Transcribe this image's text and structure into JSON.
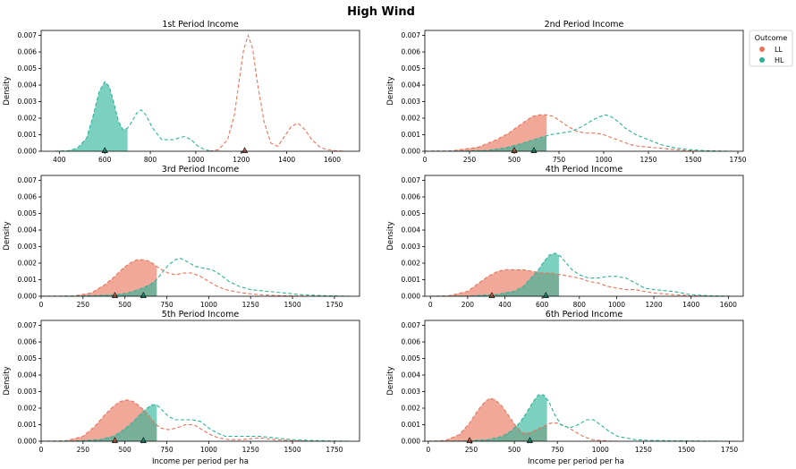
{
  "figure": {
    "title": "High Wind",
    "xlabel": "Income per period per ha",
    "ylabel": "Density",
    "legend": {
      "title": "Outcome",
      "placement": "right-top",
      "entries": [
        {
          "label": "LL",
          "color": "#e8735a"
        },
        {
          "label": "HL",
          "color": "#2bb39a"
        }
      ]
    }
  },
  "chart_data": [
    {
      "type": "area",
      "title": "1st Period Income",
      "xlim": [
        320,
        1720
      ],
      "xticks": [
        400,
        600,
        800,
        1000,
        1200,
        1400,
        1600
      ],
      "ylim": [
        0,
        0.0073
      ],
      "yticks": [
        0.0,
        0.001,
        0.002,
        0.003,
        0.004,
        0.005,
        0.006,
        0.007
      ],
      "grid": false,
      "series": [
        {
          "name": "LL",
          "color": "#e8735a",
          "x": [
            1060,
            1100,
            1140,
            1170,
            1190,
            1210,
            1230,
            1250,
            1270,
            1300,
            1330,
            1360,
            1390,
            1420,
            1450,
            1480,
            1510,
            1550,
            1600,
            1650
          ],
          "y": [
            0.0,
            0.0001,
            0.0007,
            0.0022,
            0.0042,
            0.0061,
            0.007,
            0.0062,
            0.0042,
            0.0018,
            0.0005,
            0.0003,
            0.0009,
            0.0015,
            0.0017,
            0.0013,
            0.0007,
            0.0002,
            5e-05,
            0.0
          ],
          "shade_to": null,
          "marker": 1215
        },
        {
          "name": "HL",
          "color": "#2bb39a",
          "x": [
            380,
            440,
            480,
            520,
            550,
            575,
            600,
            620,
            640,
            660,
            680,
            700,
            720,
            740,
            760,
            780,
            810,
            850,
            900,
            950,
            980,
            1010,
            1040,
            1070,
            1110
          ],
          "y": [
            0.0,
            3e-05,
            0.0002,
            0.0008,
            0.0022,
            0.0036,
            0.0042,
            0.0039,
            0.0029,
            0.0018,
            0.0013,
            0.0014,
            0.0018,
            0.0023,
            0.0025,
            0.0022,
            0.0014,
            0.0007,
            0.0007,
            0.0009,
            0.0007,
            0.0003,
            0.0001,
            0.0,
            0.0
          ],
          "shade_to": 700,
          "marker": 600
        }
      ]
    },
    {
      "type": "area",
      "title": "2nd Period Income",
      "xlim": [
        0,
        1780
      ],
      "xticks": [
        0,
        250,
        500,
        750,
        1000,
        1250,
        1500,
        1750
      ],
      "ylim": [
        0,
        0.0073
      ],
      "yticks": [
        0.0,
        0.001,
        0.002,
        0.003,
        0.004,
        0.005,
        0.006,
        0.007
      ],
      "grid": false,
      "series": [
        {
          "name": "LL",
          "color": "#e8735a",
          "x": [
            0,
            150,
            300,
            400,
            470,
            520,
            560,
            600,
            640,
            680,
            720,
            760,
            800,
            850,
            900,
            950,
            1000,
            1050,
            1100,
            1150,
            1200,
            1300,
            1400,
            1480,
            1520
          ],
          "y": [
            0.0,
            2e-05,
            0.00025,
            0.0007,
            0.0011,
            0.0015,
            0.0018,
            0.0021,
            0.0022,
            0.0022,
            0.0021,
            0.0018,
            0.0015,
            0.0012,
            0.0011,
            0.0011,
            0.001,
            0.0008,
            0.0006,
            0.0004,
            0.0003,
            0.0002,
            0.0001,
            3e-05,
            0.0
          ],
          "shade_to": 680,
          "marker": 500
        },
        {
          "name": "HL",
          "color": "#2bb39a",
          "x": [
            0,
            200,
            350,
            450,
            520,
            580,
            640,
            700,
            760,
            820,
            880,
            940,
            980,
            1010,
            1040,
            1080,
            1120,
            1180,
            1250,
            1320,
            1400,
            1480,
            1550,
            1620,
            1700,
            1740
          ],
          "y": [
            0.0,
            1e-05,
            5e-05,
            0.0002,
            0.0004,
            0.0006,
            0.0008,
            0.001,
            0.0011,
            0.0012,
            0.0015,
            0.0019,
            0.0021,
            0.0022,
            0.0021,
            0.0018,
            0.0014,
            0.001,
            0.0007,
            0.0004,
            0.0002,
            0.0001,
            5e-05,
            2e-05,
            0.0,
            0.0
          ],
          "shade_to": 680,
          "marker": 610
        }
      ]
    },
    {
      "type": "area",
      "title": "3rd Period Income",
      "xlim": [
        0,
        1900
      ],
      "xticks": [
        0,
        250,
        500,
        750,
        1000,
        1250,
        1500,
        1750
      ],
      "ylim": [
        0,
        0.0073
      ],
      "yticks": [
        0.0,
        0.001,
        0.002,
        0.003,
        0.004,
        0.005,
        0.006,
        0.007
      ],
      "grid": false,
      "series": [
        {
          "name": "LL",
          "color": "#e8735a",
          "x": [
            0,
            200,
            300,
            380,
            440,
            490,
            530,
            570,
            610,
            650,
            690,
            720,
            760,
            800,
            850,
            900,
            950,
            1000,
            1050,
            1100,
            1150,
            1200,
            1300,
            1400,
            1500,
            1600,
            1700
          ],
          "y": [
            0.0,
            2e-05,
            0.0002,
            0.0007,
            0.0012,
            0.0017,
            0.002,
            0.0022,
            0.0022,
            0.0021,
            0.0018,
            0.0016,
            0.0014,
            0.0013,
            0.0014,
            0.0014,
            0.0012,
            0.0009,
            0.0006,
            0.0004,
            0.0003,
            0.0002,
            0.0001,
            5e-05,
            2e-05,
            0.0,
            0.0
          ],
          "shade_to": 690,
          "marker": 440
        },
        {
          "name": "HL",
          "color": "#2bb39a",
          "x": [
            0,
            200,
            350,
            450,
            520,
            580,
            630,
            680,
            720,
            760,
            800,
            830,
            870,
            920,
            970,
            1020,
            1070,
            1120,
            1180,
            1250,
            1350,
            1450,
            1550,
            1650,
            1750,
            1850
          ],
          "y": [
            0.0,
            1e-05,
            5e-05,
            0.0001,
            0.0002,
            0.0004,
            0.0006,
            0.0009,
            0.0014,
            0.0019,
            0.0022,
            0.0023,
            0.0021,
            0.0018,
            0.0017,
            0.0016,
            0.0013,
            0.0009,
            0.0006,
            0.0004,
            0.0003,
            0.0002,
            0.0001,
            5e-05,
            2e-05,
            0.0
          ],
          "shade_to": 690,
          "marker": 610
        }
      ]
    },
    {
      "type": "area",
      "title": "4th Period Income",
      "xlim": [
        -30,
        1680
      ],
      "xticks": [
        0,
        200,
        400,
        600,
        800,
        1000,
        1200,
        1400,
        1600
      ],
      "ylim": [
        0,
        0.0073
      ],
      "yticks": [
        0.0,
        0.001,
        0.002,
        0.003,
        0.004,
        0.005,
        0.006,
        0.007
      ],
      "grid": false,
      "series": [
        {
          "name": "LL",
          "color": "#e8735a",
          "x": [
            0,
            100,
            200,
            260,
            310,
            360,
            400,
            450,
            500,
            550,
            600,
            650,
            700,
            750,
            800,
            850,
            900,
            950,
            1000,
            1050,
            1100,
            1150,
            1200,
            1300,
            1400,
            1500,
            1600
          ],
          "y": [
            0.0,
            3e-05,
            0.0003,
            0.0008,
            0.0012,
            0.0015,
            0.0016,
            0.0016,
            0.0016,
            0.0015,
            0.0014,
            0.0014,
            0.0013,
            0.0012,
            0.0011,
            0.0009,
            0.0008,
            0.0006,
            0.0005,
            0.0004,
            0.0004,
            0.0003,
            0.0002,
            0.0001,
            3e-05,
            0.0,
            0.0
          ],
          "shade_to": 690,
          "marker": 330
        },
        {
          "name": "HL",
          "color": "#2bb39a",
          "x": [
            0,
            200,
            350,
            450,
            500,
            540,
            580,
            610,
            640,
            670,
            700,
            730,
            760,
            800,
            850,
            900,
            950,
            1000,
            1050,
            1100,
            1150,
            1200,
            1300,
            1400,
            1500,
            1620
          ],
          "y": [
            0.0,
            1e-05,
            0.0001,
            0.0003,
            0.0006,
            0.0011,
            0.0016,
            0.0021,
            0.0025,
            0.0026,
            0.0024,
            0.002,
            0.0016,
            0.0013,
            0.0011,
            0.0011,
            0.0012,
            0.0012,
            0.0011,
            0.0008,
            0.0005,
            0.0004,
            0.0003,
            0.0001,
            3e-05,
            0.0
          ],
          "shade_to": 690,
          "marker": 620
        }
      ]
    },
    {
      "type": "area",
      "title": "5th Period Income",
      "xlim": [
        0,
        1900
      ],
      "xticks": [
        0,
        250,
        500,
        750,
        1000,
        1250,
        1500,
        1750
      ],
      "ylim": [
        0,
        0.0073
      ],
      "yticks": [
        0.0,
        0.001,
        0.002,
        0.003,
        0.004,
        0.005,
        0.006,
        0.007
      ],
      "grid": false,
      "series": [
        {
          "name": "LL",
          "color": "#e8735a",
          "x": [
            0,
            150,
            250,
            320,
            380,
            430,
            470,
            510,
            550,
            590,
            630,
            670,
            710,
            760,
            810,
            860,
            910,
            960,
            1010,
            1060,
            1120,
            1200,
            1300,
            1400,
            1500,
            1600
          ],
          "y": [
            0.0,
            3e-05,
            0.0003,
            0.0009,
            0.0016,
            0.0021,
            0.0024,
            0.0025,
            0.0024,
            0.0021,
            0.0017,
            0.0012,
            0.0008,
            0.0007,
            0.0008,
            0.001,
            0.001,
            0.0007,
            0.0004,
            0.0002,
            0.0001,
            0.0001,
            0.0002,
            0.0001,
            3e-05,
            0.0
          ],
          "shade_to": 690,
          "marker": 440
        },
        {
          "name": "HL",
          "color": "#2bb39a",
          "x": [
            0,
            200,
            350,
            430,
            480,
            530,
            580,
            620,
            660,
            690,
            720,
            760,
            800,
            850,
            900,
            950,
            1000,
            1050,
            1100,
            1150,
            1200,
            1250,
            1300,
            1400,
            1500,
            1600,
            1700,
            1850
          ],
          "y": [
            0.0,
            1e-05,
            0.0001,
            0.0003,
            0.0006,
            0.001,
            0.0015,
            0.0019,
            0.0022,
            0.0022,
            0.0019,
            0.0015,
            0.0013,
            0.0013,
            0.0013,
            0.0012,
            0.0008,
            0.0005,
            0.0003,
            0.0003,
            0.0003,
            0.0003,
            0.0003,
            0.0002,
            0.0001,
            5e-05,
            2e-05,
            0.0
          ],
          "shade_to": 690,
          "marker": 610
        }
      ]
    },
    {
      "type": "area",
      "title": "6th Period Income",
      "xlim": [
        -20,
        1830
      ],
      "xticks": [
        0,
        250,
        500,
        750,
        1000,
        1250,
        1500,
        1750
      ],
      "ylim": [
        0,
        0.0073
      ],
      "yticks": [
        0.0,
        0.001,
        0.002,
        0.003,
        0.004,
        0.005,
        0.006,
        0.007
      ],
      "grid": false,
      "series": [
        {
          "name": "LL",
          "color": "#e8735a",
          "x": [
            0,
            100,
            180,
            240,
            290,
            330,
            360,
            390,
            430,
            470,
            510,
            550,
            590,
            630,
            670,
            710,
            750,
            800,
            850,
            900,
            950,
            1000,
            1050,
            1100
          ],
          "y": [
            0.0,
            5e-05,
            0.0004,
            0.0011,
            0.0019,
            0.0024,
            0.0026,
            0.0025,
            0.0021,
            0.0015,
            0.0009,
            0.0005,
            0.0005,
            0.0007,
            0.0009,
            0.0011,
            0.0011,
            0.0009,
            0.0006,
            0.0003,
            0.0001,
            5e-05,
            1e-05,
            0.0
          ],
          "shade_to": 690,
          "marker": 240
        },
        {
          "name": "HL",
          "color": "#2bb39a",
          "x": [
            0,
            200,
            350,
            430,
            480,
            530,
            570,
            610,
            640,
            670,
            700,
            730,
            770,
            820,
            870,
            920,
            960,
            1000,
            1050,
            1100,
            1150,
            1200,
            1300,
            1400,
            1500,
            1600,
            1700,
            1780
          ],
          "y": [
            0.0,
            1e-05,
            0.0001,
            0.0003,
            0.0006,
            0.0011,
            0.0017,
            0.0024,
            0.0028,
            0.0028,
            0.0024,
            0.0017,
            0.001,
            0.0008,
            0.001,
            0.0013,
            0.0013,
            0.001,
            0.0006,
            0.0003,
            0.0002,
            0.0001,
            5e-05,
            3e-05,
            2e-05,
            1e-05,
            0.0,
            0.0
          ],
          "shade_to": 690,
          "marker": 590
        }
      ]
    }
  ]
}
